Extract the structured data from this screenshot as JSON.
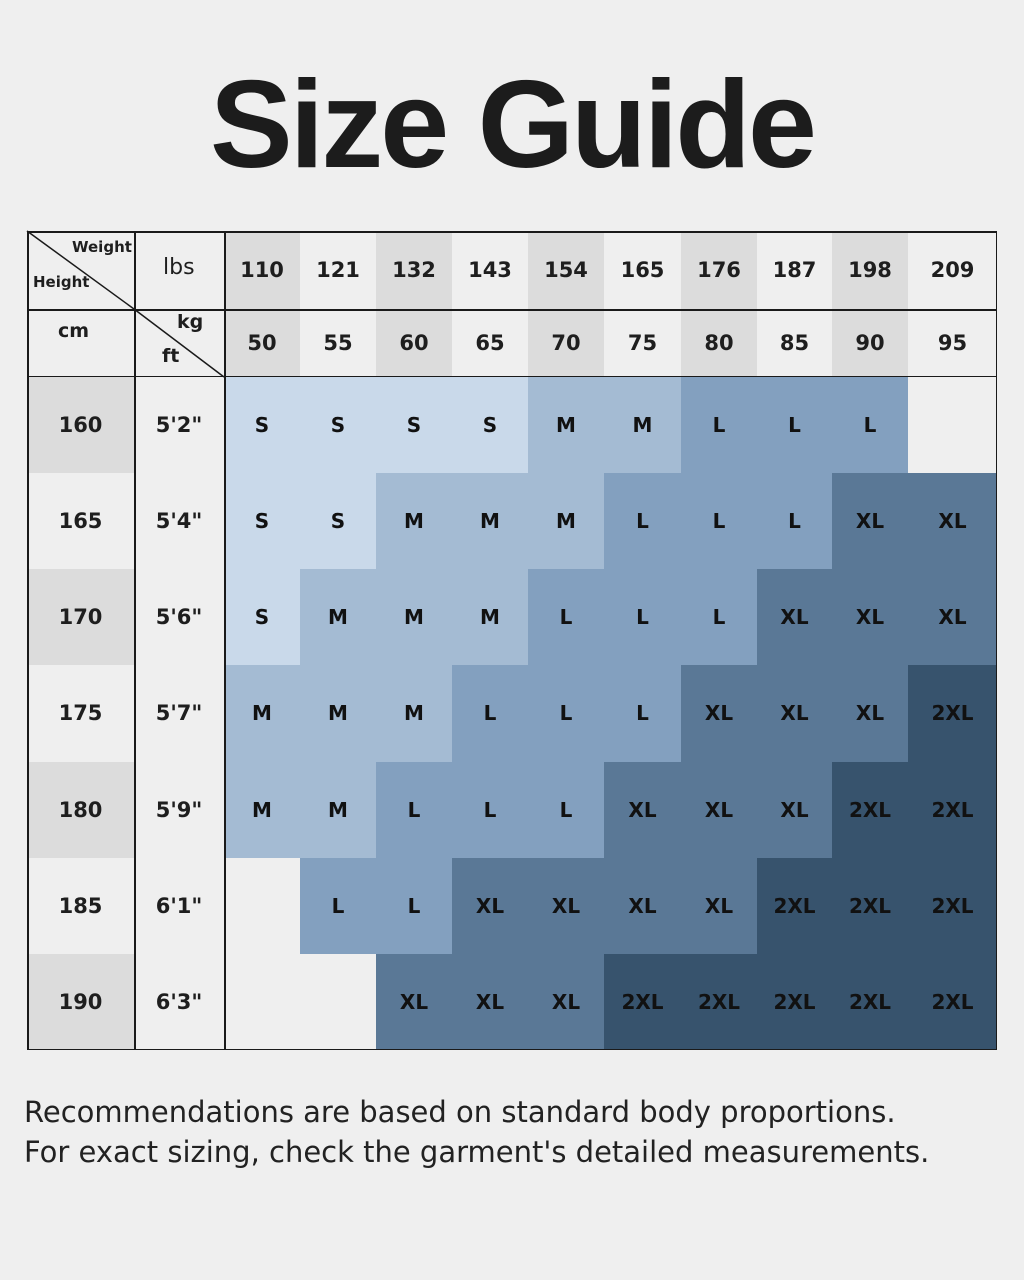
{
  "header": {
    "title": "Size Guide"
  },
  "table": {
    "corner_weight": "Weight",
    "corner_height": "Height",
    "lbs_label": "lbs",
    "cm_label": "cm",
    "kg_label": "kg",
    "ft_label": "ft",
    "lbs": [
      110,
      121,
      132,
      143,
      154,
      165,
      176,
      187,
      198,
      209
    ],
    "kg": [
      50,
      55,
      60,
      65,
      70,
      75,
      80,
      85,
      90,
      95
    ],
    "rows": [
      {
        "cm": 160,
        "ft": "5'2\"",
        "sizes": [
          "S",
          "S",
          "S",
          "S",
          "M",
          "M",
          "L",
          "L",
          "L",
          null
        ]
      },
      {
        "cm": 165,
        "ft": "5'4\"",
        "sizes": [
          "S",
          "S",
          "M",
          "M",
          "M",
          "L",
          "L",
          "L",
          "XL",
          "XL"
        ]
      },
      {
        "cm": 170,
        "ft": "5'6\"",
        "sizes": [
          "S",
          "M",
          "M",
          "M",
          "L",
          "L",
          "L",
          "XL",
          "XL",
          "XL"
        ]
      },
      {
        "cm": 175,
        "ft": "5'7\"",
        "sizes": [
          "M",
          "M",
          "M",
          "L",
          "L",
          "L",
          "XL",
          "XL",
          "XL",
          "2XL"
        ]
      },
      {
        "cm": 180,
        "ft": "5'9\"",
        "sizes": [
          "M",
          "M",
          "L",
          "L",
          "L",
          "XL",
          "XL",
          "XL",
          "2XL",
          "2XL"
        ]
      },
      {
        "cm": 185,
        "ft": "6'1\"",
        "sizes": [
          null,
          "L",
          "L",
          "XL",
          "XL",
          "XL",
          "XL",
          "2XL",
          "2XL",
          "2XL"
        ]
      },
      {
        "cm": 190,
        "ft": "6'3\"",
        "sizes": [
          null,
          null,
          "XL",
          "XL",
          "XL",
          "2XL",
          "2XL",
          "2XL",
          "2XL",
          "2XL"
        ]
      }
    ],
    "size_colors": {
      "S": "#c9d9ea",
      "M": "#a4bbd3",
      "L": "#83a0bf",
      "XL": "#5a7896",
      "2XL": "#37536d"
    }
  },
  "footer": {
    "lines": [
      "Recommendations are based on standard body proportions.",
      "For exact sizing, check the garment's detailed measurements."
    ]
  }
}
